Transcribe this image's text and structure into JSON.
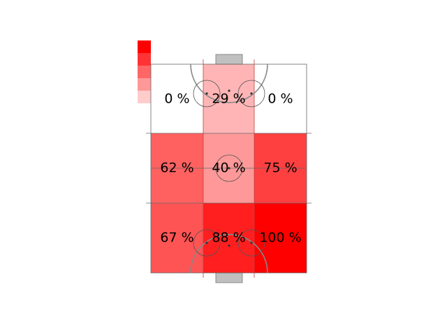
{
  "chart_data": {
    "type": "heatmap",
    "title": "",
    "xlabel": "",
    "ylabel": "",
    "grid": false,
    "legend": "top-left color scale",
    "rows": [
      {
        "values": [
          0,
          29,
          0
        ],
        "labels": [
          "0 %",
          "29 %",
          "0 %"
        ]
      },
      {
        "values": [
          62,
          40,
          75
        ],
        "labels": [
          "62 %",
          "40 %",
          "75 %"
        ]
      },
      {
        "values": [
          67,
          88,
          100
        ],
        "labels": [
          "67 %",
          "88 %",
          "100 %"
        ]
      }
    ],
    "color_scale": {
      "min": 0,
      "max": 100,
      "colors": [
        "#ffffff",
        "#ff0000"
      ],
      "legend_levels": [
        100,
        80,
        60,
        40,
        20
      ]
    }
  },
  "pitch": {
    "line_color": "#555555",
    "goal_color": "#c0c0c0"
  }
}
